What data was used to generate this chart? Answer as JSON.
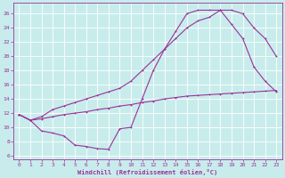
{
  "bg_color": "#c8ecec",
  "line_color": "#993399",
  "grid_color": "#ffffff",
  "xlim": [
    -0.5,
    23.5
  ],
  "ylim": [
    5.5,
    27.5
  ],
  "yticks": [
    6,
    8,
    10,
    12,
    14,
    16,
    18,
    20,
    22,
    24,
    26
  ],
  "xticks": [
    0,
    1,
    2,
    3,
    4,
    5,
    6,
    7,
    8,
    9,
    10,
    11,
    12,
    13,
    14,
    15,
    16,
    17,
    18,
    19,
    20,
    21,
    22,
    23
  ],
  "xlabel": "Windchill (Refroidissement éolien,°C)",
  "series1_x": [
    0,
    1,
    2,
    3,
    4,
    5,
    6,
    7,
    8,
    9,
    10,
    11,
    12,
    13,
    14,
    15,
    16,
    17,
    18,
    19,
    20,
    21,
    22,
    23
  ],
  "series1_y": [
    11.8,
    11.0,
    9.5,
    9.2,
    8.8,
    7.5,
    7.3,
    7.0,
    6.9,
    9.8,
    10.0,
    14.0,
    18.0,
    21.0,
    23.5,
    26.0,
    26.5,
    26.5,
    26.5,
    24.5,
    22.5,
    18.5,
    16.5,
    15.0
  ],
  "series2_x": [
    0,
    1,
    2,
    3,
    4,
    5,
    6,
    7,
    8,
    9,
    10,
    11,
    12,
    13,
    14,
    15,
    16,
    17,
    18,
    19,
    20,
    21,
    22,
    23
  ],
  "series2_y": [
    11.8,
    11.0,
    11.2,
    11.5,
    11.8,
    12.0,
    12.2,
    12.5,
    12.7,
    13.0,
    13.2,
    13.5,
    13.7,
    14.0,
    14.2,
    14.4,
    14.5,
    14.6,
    14.7,
    14.8,
    14.9,
    15.0,
    15.1,
    15.2
  ],
  "series3_x": [
    0,
    1,
    2,
    3,
    4,
    5,
    6,
    7,
    8,
    9,
    10,
    11,
    12,
    13,
    14,
    15,
    16,
    17,
    18,
    19,
    20,
    21,
    22,
    23
  ],
  "series3_y": [
    11.8,
    11.0,
    11.5,
    12.5,
    13.0,
    13.5,
    14.0,
    14.5,
    15.0,
    15.5,
    16.5,
    18.0,
    19.5,
    21.0,
    22.5,
    24.0,
    25.0,
    25.5,
    26.5,
    26.5,
    26.0,
    24.0,
    22.5,
    20.0
  ],
  "marker_size": 2.0,
  "line_width": 0.8,
  "tick_fontsize": 4.5,
  "xlabel_fontsize": 5.0
}
